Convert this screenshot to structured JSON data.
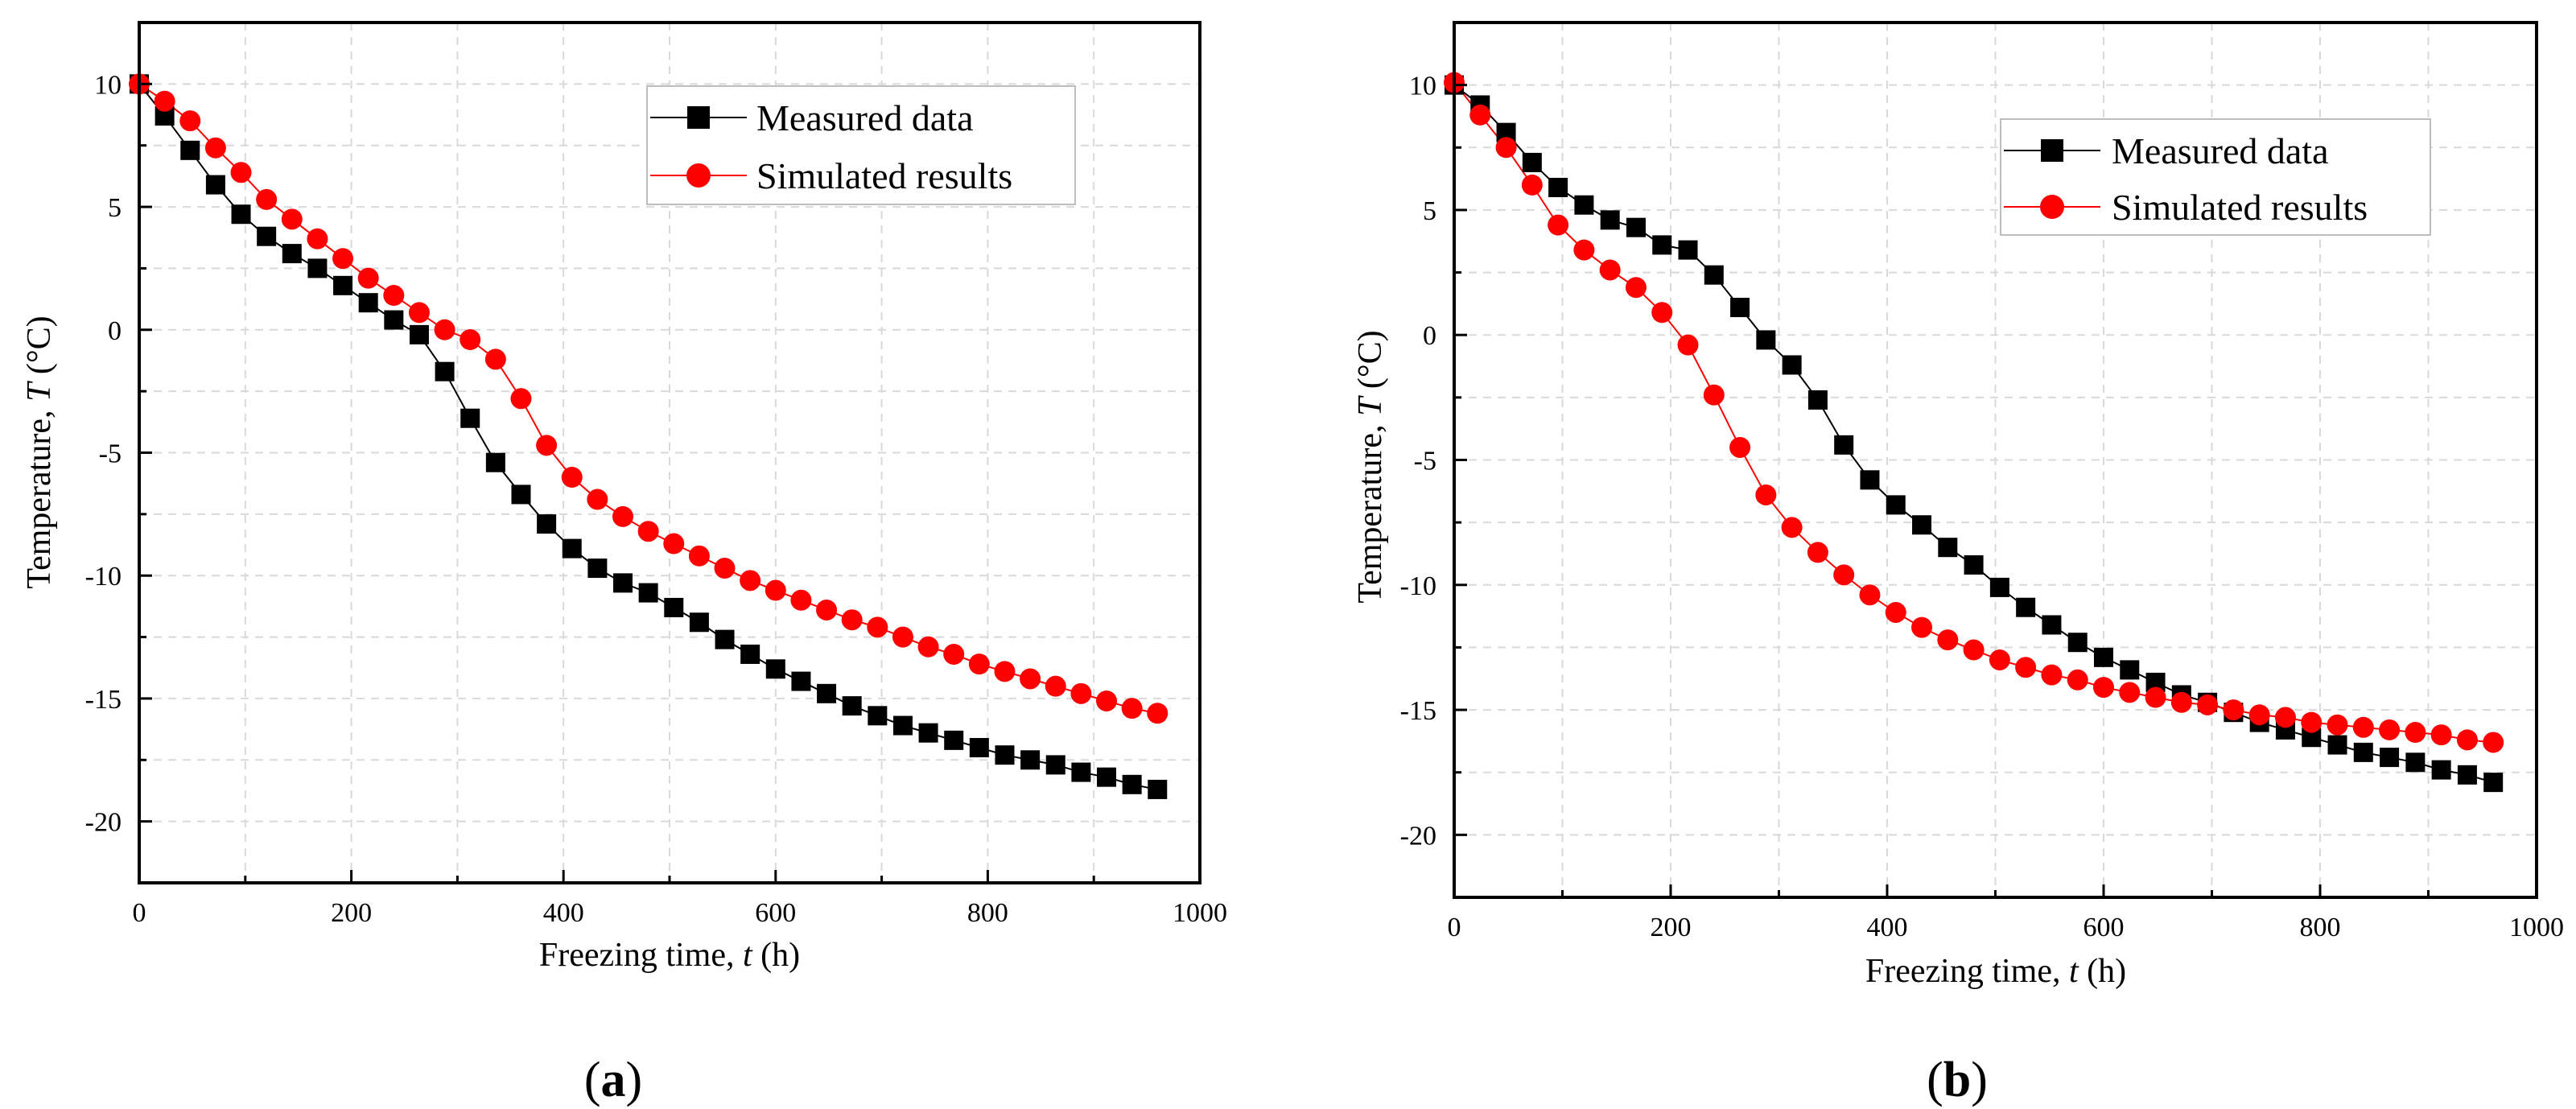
{
  "figure": {
    "panel_labels": [
      {
        "open": "(",
        "letter": "a",
        "close": ")"
      },
      {
        "open": "(",
        "letter": "b",
        "close": ")"
      }
    ]
  },
  "chart_data": [
    {
      "type": "line",
      "panel": "a",
      "title": "",
      "xlabel_prefix": "Freezing time, ",
      "xlabel_var": "t",
      "xlabel_suffix": " (h)",
      "ylabel_prefix": "Temperature, ",
      "ylabel_var": "T",
      "ylabel_suffix": " (°C)",
      "xlim": [
        0,
        1000
      ],
      "ylim": [
        -22.5,
        12.5
      ],
      "xticks": [
        0,
        200,
        400,
        600,
        800,
        1000
      ],
      "xtick_labels": [
        "0",
        "200",
        "400",
        "600",
        "800",
        "1000"
      ],
      "yticks": [
        10,
        5,
        0,
        -5,
        -10,
        -15,
        -20
      ],
      "ytick_labels": [
        "10",
        "5",
        "0",
        "-5",
        "-10",
        "-15",
        "-20"
      ],
      "grid": true,
      "legend": "top-right",
      "x": [
        0,
        24,
        48,
        72,
        96,
        120,
        144,
        168,
        192,
        216,
        240,
        264,
        288,
        312,
        336,
        360,
        384,
        408,
        432,
        456,
        480,
        504,
        528,
        552,
        576,
        600,
        624,
        648,
        672,
        696,
        720,
        744,
        768,
        792,
        816,
        840,
        864,
        888,
        912,
        936,
        960
      ],
      "series": [
        {
          "name": "Measured data",
          "marker": "square",
          "color": "#000000",
          "values": [
            10.0,
            8.7,
            7.3,
            5.9,
            4.7,
            3.8,
            3.1,
            2.5,
            1.8,
            1.1,
            0.4,
            -0.2,
            -1.7,
            -3.6,
            -5.4,
            -6.7,
            -7.9,
            -8.9,
            -9.7,
            -10.3,
            -10.7,
            -11.3,
            -11.9,
            -12.6,
            -13.2,
            -13.8,
            -14.3,
            -14.8,
            -15.3,
            -15.7,
            -16.1,
            -16.4,
            -16.7,
            -17.0,
            -17.3,
            -17.5,
            -17.7,
            -18.0,
            -18.2,
            -18.5,
            -18.7
          ]
        },
        {
          "name": "Simulated results",
          "marker": "circle",
          "color": "#ff0000",
          "values": [
            10.0,
            9.3,
            8.5,
            7.4,
            6.4,
            5.3,
            4.5,
            3.7,
            2.9,
            2.1,
            1.4,
            0.7,
            0.0,
            -0.4,
            -1.2,
            -2.8,
            -4.7,
            -6.0,
            -6.9,
            -7.6,
            -8.2,
            -8.7,
            -9.2,
            -9.7,
            -10.2,
            -10.6,
            -11.0,
            -11.4,
            -11.8,
            -12.1,
            -12.5,
            -12.9,
            -13.2,
            -13.6,
            -13.9,
            -14.2,
            -14.5,
            -14.8,
            -15.1,
            -15.4,
            -15.6
          ]
        }
      ]
    },
    {
      "type": "line",
      "panel": "b",
      "title": "",
      "xlabel_prefix": "Freezing time, ",
      "xlabel_var": "t",
      "xlabel_suffix": " (h)",
      "ylabel_prefix": "Temperature, ",
      "ylabel_var": "T",
      "ylabel_suffix": " (°C)",
      "xlim": [
        0,
        1000
      ],
      "ylim": [
        -22.5,
        12.5
      ],
      "xticks": [
        0,
        200,
        400,
        600,
        800,
        1000
      ],
      "xtick_labels": [
        "0",
        "200",
        "400",
        "600",
        "800",
        "1000"
      ],
      "yticks": [
        10,
        5,
        0,
        -5,
        -10,
        -15,
        -20
      ],
      "ytick_labels": [
        "10",
        "5",
        "0",
        "-5",
        "-10",
        "-15",
        "-20"
      ],
      "grid": true,
      "legend": "top-right",
      "x": [
        0,
        24,
        48,
        72,
        96,
        120,
        144,
        168,
        192,
        216,
        240,
        264,
        288,
        312,
        336,
        360,
        384,
        408,
        432,
        456,
        480,
        504,
        528,
        552,
        576,
        600,
        624,
        648,
        672,
        696,
        720,
        744,
        768,
        792,
        816,
        840,
        864,
        888,
        912,
        936,
        960
      ],
      "series": [
        {
          "name": "Measured data",
          "marker": "square",
          "color": "#000000",
          "values": [
            10.0,
            9.2,
            8.1,
            6.9,
            5.9,
            5.2,
            4.6,
            4.3,
            3.6,
            3.4,
            2.4,
            1.1,
            -0.2,
            -1.2,
            -2.6,
            -4.4,
            -5.8,
            -6.8,
            -7.6,
            -8.5,
            -9.2,
            -10.1,
            -10.9,
            -11.6,
            -12.3,
            -12.9,
            -13.4,
            -13.9,
            -14.4,
            -14.7,
            -15.1,
            -15.5,
            -15.8,
            -16.1,
            -16.4,
            -16.7,
            -16.9,
            -17.1,
            -17.4,
            -17.6,
            -17.9
          ]
        },
        {
          "name": "Simulated results",
          "marker": "circle",
          "color": "#ff0000",
          "values": [
            10.1,
            8.8,
            7.5,
            6.0,
            4.4,
            3.4,
            2.6,
            1.9,
            0.9,
            -0.4,
            -2.4,
            -4.5,
            -6.4,
            -7.7,
            -8.7,
            -9.6,
            -10.4,
            -11.1,
            -11.7,
            -12.2,
            -12.6,
            -13.0,
            -13.3,
            -13.6,
            -13.8,
            -14.1,
            -14.3,
            -14.5,
            -14.7,
            -14.8,
            -15.0,
            -15.2,
            -15.3,
            -15.5,
            -15.6,
            -15.7,
            -15.8,
            -15.9,
            -16.0,
            -16.2,
            -16.3
          ]
        }
      ]
    }
  ]
}
